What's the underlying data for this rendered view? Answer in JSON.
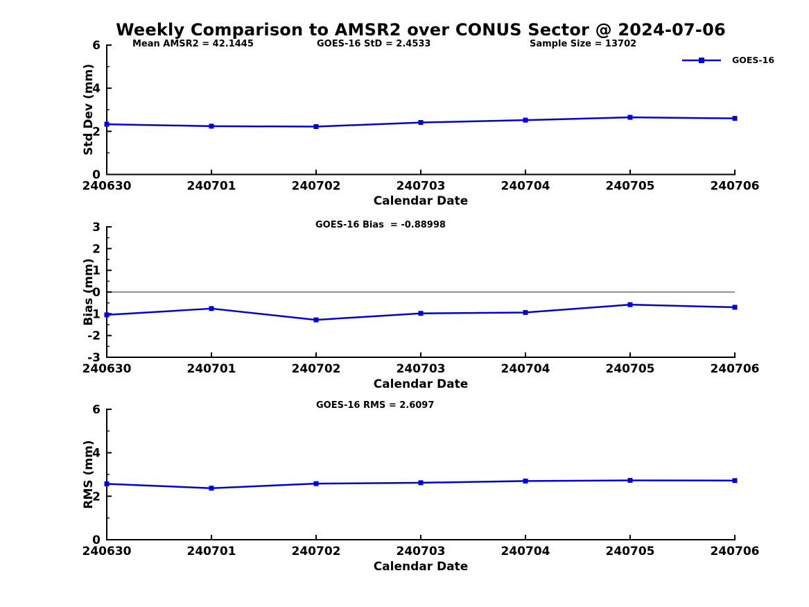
{
  "figure": {
    "title": "Weekly Comparison to AMSR2 over CONUS Sector @ 2024-07-06",
    "legend": {
      "label": "GOES-16",
      "color": "#0000dd",
      "marker": "filled-square"
    },
    "colors": {
      "line": "#0000dd",
      "zero_line": "#808080",
      "axis": "#000000",
      "text": "#000000",
      "background": "#ffffff"
    }
  },
  "chart_data": [
    {
      "type": "line",
      "title": "",
      "categories": [
        "240630",
        "240701",
        "240702",
        "240703",
        "240704",
        "240705",
        "240706"
      ],
      "series": [
        {
          "name": "GOES-16",
          "values": [
            2.33,
            2.24,
            2.22,
            2.41,
            2.52,
            2.65,
            2.6
          ]
        }
      ],
      "xlabel": "Calendar Date",
      "ylabel": "Std Dev (mm)",
      "ylim": [
        0,
        6
      ],
      "yticks": [
        0,
        2,
        4,
        6
      ],
      "yminor_step": 1,
      "zero_line": false,
      "grid": false,
      "legend_position": "top-right",
      "annotations": [
        "Mean AMSR2 = 42.1445",
        "GOES-16 StD = 2.4533",
        "Sample Size = 13702"
      ],
      "stats": {
        "mean_amsr2": 42.1445,
        "goes16_std": 2.4533,
        "sample_size": 13702
      }
    },
    {
      "type": "line",
      "title": "",
      "categories": [
        "240630",
        "240701",
        "240702",
        "240703",
        "240704",
        "240705",
        "240706"
      ],
      "series": [
        {
          "name": "GOES-16",
          "values": [
            -1.05,
            -0.76,
            -1.28,
            -0.98,
            -0.94,
            -0.58,
            -0.7
          ]
        }
      ],
      "xlabel": "Calendar Date",
      "ylabel": "Bias (mm)",
      "ylim": [
        -3,
        3
      ],
      "yticks": [
        -3,
        -2,
        -1,
        0,
        1,
        2,
        3
      ],
      "yminor_step": 0.5,
      "zero_line": true,
      "grid": false,
      "annotations": [
        "GOES-16 Bias  = -0.88998"
      ],
      "stats": {
        "goes16_bias": -0.88998
      }
    },
    {
      "type": "line",
      "title": "",
      "categories": [
        "240630",
        "240701",
        "240702",
        "240703",
        "240704",
        "240705",
        "240706"
      ],
      "series": [
        {
          "name": "GOES-16",
          "values": [
            2.57,
            2.37,
            2.58,
            2.62,
            2.7,
            2.73,
            2.72
          ]
        }
      ],
      "xlabel": "Calendar Date",
      "ylabel": "RMS (mm)",
      "ylim": [
        0,
        6
      ],
      "yticks": [
        0,
        2,
        4,
        6
      ],
      "yminor_step": 1,
      "zero_line": false,
      "grid": false,
      "annotations": [
        "GOES-16 RMS = 2.6097"
      ],
      "stats": {
        "goes16_rms": 2.6097
      }
    }
  ]
}
